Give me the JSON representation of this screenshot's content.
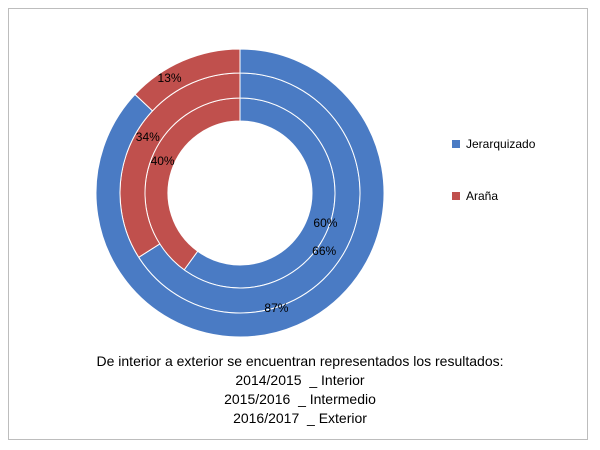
{
  "chart_data": {
    "type": "donut",
    "series": [
      {
        "name": "Jerarquizado",
        "color": "#4A7BC4",
        "values_inner_to_outer": [
          60,
          66,
          87
        ]
      },
      {
        "name": "Araña",
        "color": "#C0504D",
        "values_inner_to_outer": [
          40,
          34,
          13
        ]
      }
    ],
    "data_labels": {
      "Jerarquizado": [
        "60%",
        "66%",
        "87%"
      ],
      "Araña": [
        "40%",
        "34%",
        "13%"
      ]
    }
  },
  "legend": [
    {
      "label": "Jerarquizado",
      "color": "#4A7BC4"
    },
    {
      "label": "Araña",
      "color": "#C0504D"
    }
  ],
  "caption": {
    "line1": "De interior a exterior se encuentran representados los resultados:",
    "line2": "2014/2015  _ Interior",
    "line3": "2015/2016  _ Intermedio",
    "line4": "2016/2017  _ Exterior"
  }
}
